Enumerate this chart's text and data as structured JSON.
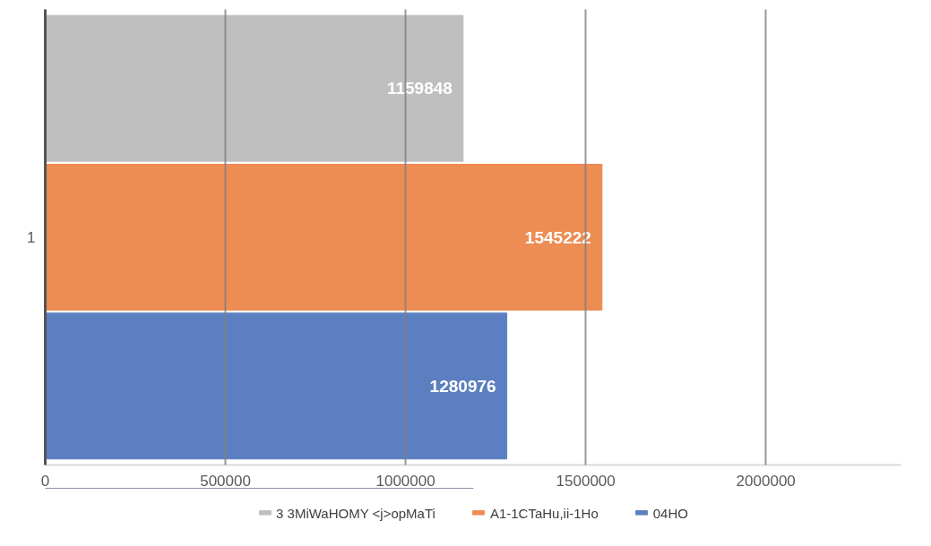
{
  "chart_data": {
    "type": "bar",
    "orientation": "horizontal",
    "categories": [
      "1"
    ],
    "series": [
      {
        "name": "3 3MiWaHOMY <j>opMaTi",
        "color": "#bfbfbf",
        "values": [
          1159848
        ]
      },
      {
        "name": "A1-1CTaHu,ii-1Ho",
        "color": "#ed8c53",
        "values": [
          1545222
        ]
      },
      {
        "name": "04HO",
        "color": "#5b7fc0",
        "values": [
          1280976
        ]
      }
    ],
    "xlim": [
      0,
      2375000
    ],
    "xticks": [
      0,
      500000,
      1000000,
      1500000,
      2000000
    ],
    "grid": "x",
    "legend": "bottom",
    "data_labels": true
  }
}
